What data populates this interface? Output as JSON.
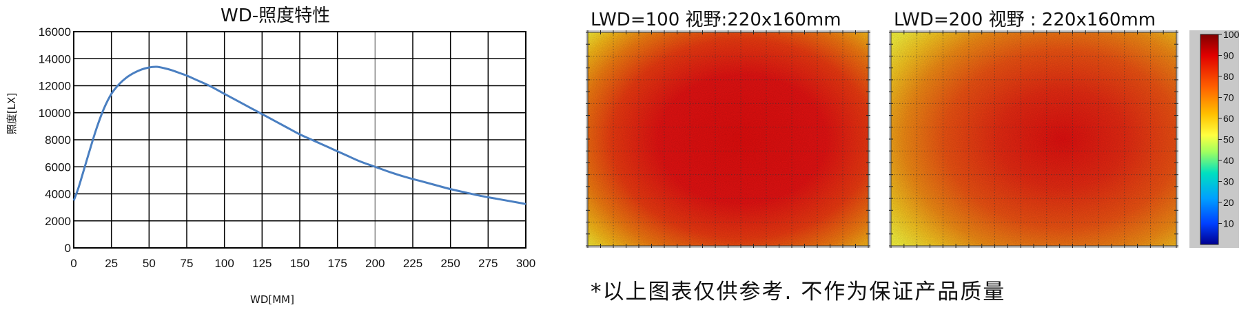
{
  "chart_data": [
    {
      "type": "line",
      "title": "WD-照度特性",
      "xlabel": "WD[MM]",
      "ylabel": "照度[LX]",
      "xlim": [
        0,
        300
      ],
      "ylim": [
        0,
        16000
      ],
      "xticks": [
        0,
        25,
        50,
        75,
        100,
        125,
        150,
        175,
        200,
        225,
        250,
        275,
        300
      ],
      "yticks": [
        0,
        2000,
        4000,
        6000,
        8000,
        10000,
        12000,
        14000,
        16000
      ],
      "grid": true,
      "series": [
        {
          "color": "#4a7fc1",
          "x": [
            0,
            3,
            6,
            10,
            15,
            20,
            25,
            30,
            35,
            40,
            45,
            50,
            55,
            60,
            65,
            70,
            75,
            80,
            90,
            100,
            110,
            120,
            130,
            140,
            150,
            160,
            170,
            180,
            190,
            200,
            210,
            220,
            230,
            240,
            250,
            260,
            270,
            280,
            290,
            300
          ],
          "y": [
            3500,
            4400,
            5500,
            7000,
            8800,
            10300,
            11400,
            12100,
            12600,
            12950,
            13200,
            13350,
            13400,
            13300,
            13150,
            12950,
            12750,
            12500,
            12000,
            11400,
            10800,
            10200,
            9600,
            9000,
            8400,
            7900,
            7400,
            6900,
            6400,
            6000,
            5600,
            5250,
            4950,
            4650,
            4350,
            4100,
            3850,
            3650,
            3450,
            3250
          ]
        }
      ]
    },
    {
      "type": "heatmap",
      "title": "LWD=100   视野:220x160mm",
      "value_range": [
        0,
        100
      ],
      "center_value": 90,
      "edge_value": 80,
      "corner_value": 65
    },
    {
      "type": "heatmap",
      "title": "LWD=200   视野 : 220x160mm",
      "value_range": [
        0,
        100
      ],
      "center_value": 88,
      "edge_value": 78,
      "corner_value": 68
    }
  ],
  "colorbar": {
    "ticks": [
      "100",
      "90",
      "80",
      "70",
      "60",
      "50",
      "40",
      "30",
      "20",
      "10"
    ],
    "colors": [
      "#800000",
      "#e00000",
      "#ff6000",
      "#ffc000",
      "#ffff40",
      "#a0ff60",
      "#00e0c0",
      "#00a0ff",
      "#0040ff",
      "#000090"
    ]
  },
  "note": "*以上图表仅供参考. 不作为保证产品质量"
}
